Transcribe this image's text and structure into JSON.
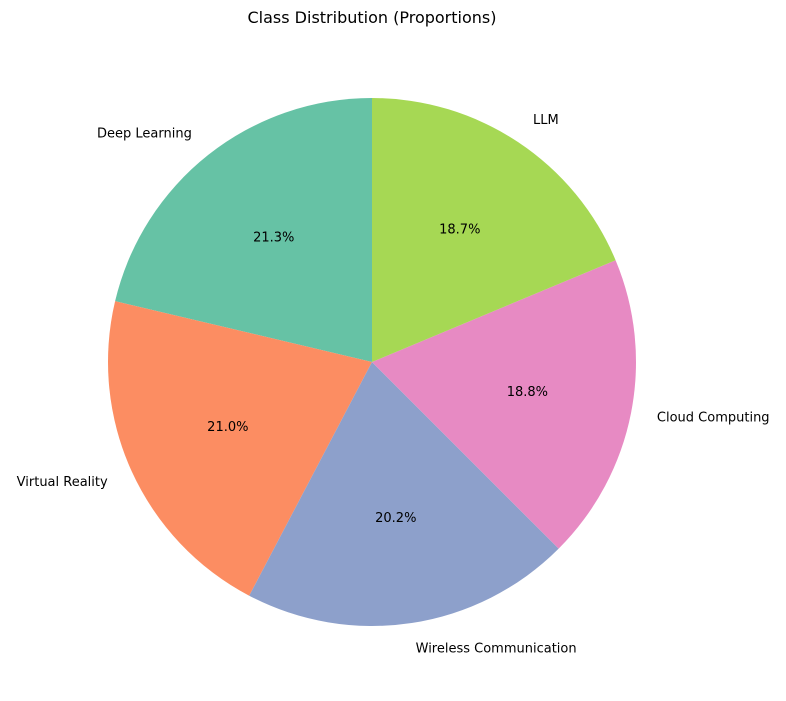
{
  "chart_data": {
    "type": "pie",
    "title": "Class Distribution (Proportions)",
    "start_angle_deg": 90,
    "direction": "counterclockwise",
    "slices": [
      {
        "label": "Deep Learning",
        "value": 21.3,
        "pct_text": "21.3%",
        "color": "#66c2a5"
      },
      {
        "label": "Virtual Reality",
        "value": 21.0,
        "pct_text": "21.0%",
        "color": "#fc8d62"
      },
      {
        "label": "Wireless Communication",
        "value": 20.2,
        "pct_text": "20.2%",
        "color": "#8da0cb"
      },
      {
        "label": "Cloud Computing",
        "value": 18.8,
        "pct_text": "18.8%",
        "color": "#e78ac3"
      },
      {
        "label": "LLM",
        "value": 18.7,
        "pct_text": "18.7%",
        "color": "#a6d854"
      }
    ]
  }
}
